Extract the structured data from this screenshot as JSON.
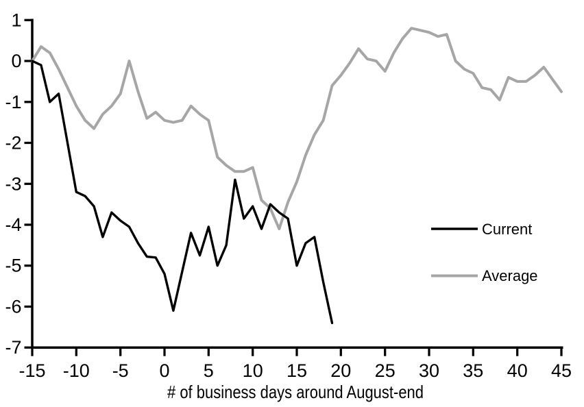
{
  "figure": {
    "title": "",
    "background": "#ffffff",
    "axis_color": "#000000"
  },
  "legend": {
    "position": "middle-right",
    "items": [
      {
        "label": "Current",
        "color": "#000000"
      },
      {
        "label": "Average",
        "color": "#a6a6a6"
      }
    ]
  },
  "chart_data": {
    "type": "line",
    "title": "",
    "xlabel": "# of business days around August-end",
    "ylabel": "",
    "xlim": [
      -15,
      45
    ],
    "ylim": [
      -7,
      1
    ],
    "x_ticks": [
      -15,
      -10,
      -5,
      0,
      5,
      10,
      15,
      20,
      25,
      30,
      35,
      40,
      45
    ],
    "y_ticks": [
      1,
      0,
      -1,
      -2,
      -3,
      -4,
      -5,
      -6,
      -7
    ],
    "grid": false,
    "legend_position": "middle-right",
    "series": [
      {
        "name": "Current",
        "color": "#000000",
        "stroke_width": 3.4,
        "x": [
          -15,
          -14,
          -13,
          -12,
          -11,
          -10,
          -9,
          -8,
          -7,
          -6,
          -5,
          -4,
          -3,
          -2,
          -1,
          0,
          1,
          2,
          3,
          4,
          5,
          6,
          7,
          8,
          9,
          10,
          11,
          12,
          13,
          14,
          15,
          16,
          17,
          18,
          19
        ],
        "y": [
          0,
          -0.1,
          -1.0,
          -0.8,
          -2.0,
          -3.2,
          -3.3,
          -3.55,
          -4.3,
          -3.7,
          -3.9,
          -4.05,
          -4.45,
          -4.78,
          -4.8,
          -5.2,
          -6.1,
          -5.15,
          -4.2,
          -4.75,
          -4.05,
          -5.0,
          -4.5,
          -2.9,
          -3.85,
          -3.55,
          -4.1,
          -3.5,
          -3.7,
          -3.85,
          -5.0,
          -4.45,
          -4.3,
          -5.4,
          -6.4
        ]
      },
      {
        "name": "Average",
        "color": "#a6a6a6",
        "stroke_width": 4,
        "x": [
          -15,
          -14,
          -13,
          -12,
          -11,
          -10,
          -9,
          -8,
          -7,
          -6,
          -5,
          -4,
          -3,
          -2,
          -1,
          0,
          1,
          2,
          3,
          4,
          5,
          6,
          7,
          8,
          9,
          10,
          11,
          12,
          13,
          14,
          15,
          16,
          17,
          18,
          19,
          20,
          21,
          22,
          23,
          24,
          25,
          26,
          27,
          28,
          29,
          30,
          31,
          32,
          33,
          34,
          35,
          36,
          37,
          38,
          39,
          40,
          41,
          42,
          43,
          44,
          45
        ],
        "y": [
          0,
          0.35,
          0.2,
          -0.2,
          -0.65,
          -1.1,
          -1.45,
          -1.65,
          -1.3,
          -1.1,
          -0.8,
          0.0,
          -0.75,
          -1.4,
          -1.25,
          -1.45,
          -1.5,
          -1.45,
          -1.1,
          -1.3,
          -1.45,
          -2.35,
          -2.55,
          -2.7,
          -2.7,
          -2.6,
          -3.4,
          -3.6,
          -4.1,
          -3.45,
          -2.95,
          -2.3,
          -1.8,
          -1.45,
          -0.6,
          -0.35,
          -0.05,
          0.3,
          0.05,
          0.0,
          -0.25,
          0.2,
          0.55,
          0.8,
          0.75,
          0.7,
          0.6,
          0.65,
          0.0,
          -0.2,
          -0.3,
          -0.65,
          -0.7,
          -0.95,
          -0.4,
          -0.5,
          -0.5,
          -0.35,
          -0.15,
          -0.45,
          -0.75
        ]
      }
    ]
  }
}
